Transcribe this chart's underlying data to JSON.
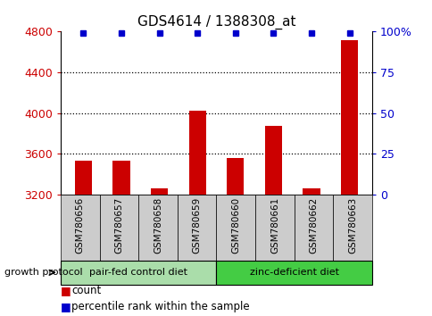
{
  "title": "GDS4614 / 1388308_at",
  "samples": [
    "GSM780656",
    "GSM780657",
    "GSM780658",
    "GSM780659",
    "GSM780660",
    "GSM780661",
    "GSM780662",
    "GSM780663"
  ],
  "counts": [
    3530,
    3530,
    3260,
    4020,
    3560,
    3870,
    3260,
    4720
  ],
  "percentiles": [
    99,
    99,
    99,
    99,
    99,
    99,
    99,
    99
  ],
  "ylim_min": 3200,
  "ylim_max": 4800,
  "yticks": [
    3200,
    3600,
    4000,
    4400,
    4800
  ],
  "y2ticks": [
    0,
    25,
    50,
    75,
    100
  ],
  "y2labels": [
    "0",
    "25",
    "50",
    "75",
    "100%"
  ],
  "bar_color": "#cc0000",
  "dot_color": "#0000cc",
  "group1_label": "pair-fed control diet",
  "group2_label": "zinc-deficient diet",
  "group1_color": "#aaddaa",
  "group2_color": "#44cc44",
  "protocol_label": "growth protocol",
  "legend_count": "count",
  "legend_pct": "percentile rank within the sample",
  "label_color_left": "#cc0000",
  "label_color_right": "#0000cc",
  "sample_box_color": "#cccccc",
  "grid_dotted_ticks": [
    3600,
    4000,
    4400
  ]
}
